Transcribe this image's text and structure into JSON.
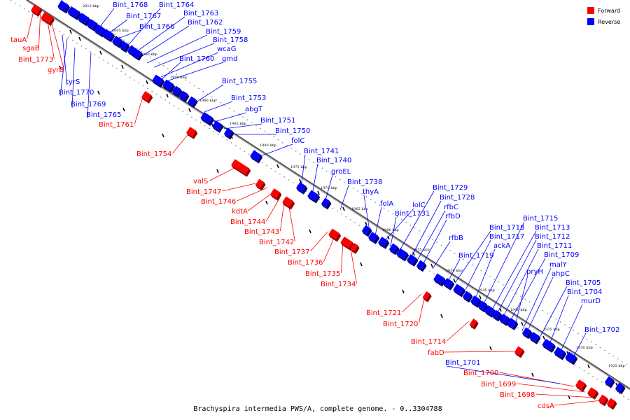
{
  "caption": "Brachyspira intermedia PWS/A, complete genome. - 0..3304788",
  "legend": [
    {
      "label": "Forward",
      "color": "#ff0000"
    },
    {
      "label": "Reverse",
      "color": "#0000ff"
    }
  ],
  "colors": {
    "forward": "#ff0000",
    "reverse": "#0000ff",
    "forward_dark": "#990000",
    "reverse_dark": "#00007a",
    "backbone": "#808080"
  },
  "ticks": [
    "2010 kbp",
    "2005 kbp",
    "2000 kbp",
    "1995 kbp",
    "1990 kbp",
    "1985 kbp",
    "1980 kbp",
    "1975 kbp",
    "1970 kbp",
    "1965 kbp",
    "1960 kbp",
    "1955 kbp",
    "1950 kbp",
    "1945 kbp",
    "1940 kbp",
    "1935 kbp",
    "1930 kbp",
    "1925 kbp"
  ],
  "forward_labels": [
    "tauA",
    "sgaB",
    "Bint_1773",
    "gyrB",
    "Bint_1761",
    "Bint_1754",
    "valS",
    "Bint_1747",
    "Bint_1746",
    "kdtA",
    "Bint_1744",
    "Bint_1743",
    "Bint_1742",
    "Bint_1737",
    "Bint_1736",
    "Bint_1735",
    "Bint_1734",
    "Bint_1721",
    "Bint_1720",
    "Bint_1714",
    "fabD",
    "Bint_1700",
    "Bint_1699",
    "Bint_1698",
    "cdsA"
  ],
  "reverse_labels": [
    "Bint_1768",
    "Bint_1767",
    "Bint_1766",
    "Bint_1764",
    "Bint_1763",
    "Bint_1762",
    "Bint_1759",
    "Bint_1758",
    "wcaG",
    "gmd",
    "Bint_1760",
    "tyrS",
    "Bint_1770",
    "Bint_1769",
    "Bint_1765",
    "Bint_1755",
    "Bint_1753",
    "abgT",
    "Bint_1751",
    "Bint_1750",
    "folC",
    "Bint_1741",
    "Bint_1740",
    "groEL",
    "Bint_1738",
    "thyA",
    "folA",
    "lolC",
    "Bint_1731",
    "Bint_1729",
    "Bint_1728",
    "rfbC",
    "rfbD",
    "rfbB",
    "Bint_1718",
    "Bint_1717",
    "ackA",
    "Bint_1719",
    "Bint_1715",
    "Bint_1713",
    "Bint_1712",
    "Bint_1711",
    "Bint_1709",
    "pryH",
    "malY",
    "ahpC",
    "Bint_1705",
    "Bint_1704",
    "murD",
    "Bint_1702",
    "Bint_1701"
  ]
}
